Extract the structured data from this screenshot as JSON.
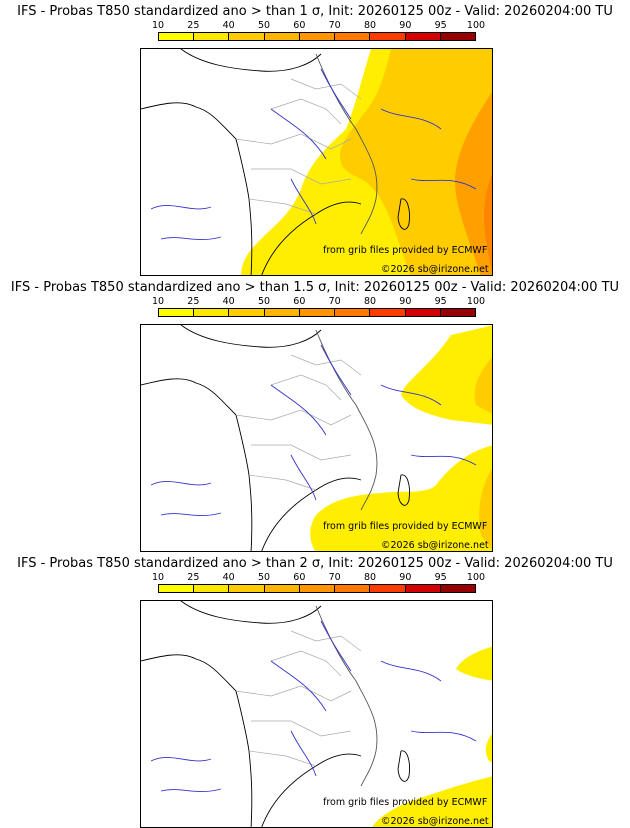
{
  "scale": {
    "labels": [
      "10",
      "25",
      "40",
      "50",
      "60",
      "70",
      "80",
      "90",
      "95",
      "100"
    ],
    "colors": [
      "#ffff00",
      "#ffe800",
      "#ffcc00",
      "#ffb400",
      "#ff9600",
      "#ff7800",
      "#ff3c00",
      "#d20000",
      "#960000"
    ]
  },
  "panels": [
    {
      "title": "IFS - Probas T850  standardized ano > than 1 σ, Init: 20260125 00z - Valid: 20260204:00 TU",
      "credit_source": "from grib files provided by ECMWF",
      "credit_copyright": "©2026 sb@irizone.net"
    },
    {
      "title": "IFS - Probas T850  standardized ano > than 1.5 σ, Init: 20260125 00z - Valid: 20260204:00 TU",
      "credit_source": "from grib files provided by ECMWF",
      "credit_copyright": "©2026 sb@irizone.net"
    },
    {
      "title": "IFS - Probas T850  standardized ano > than 2 σ, Init: 20260125 00z - Valid: 20260204:00 TU",
      "credit_source": "from grib files provided by ECMWF",
      "credit_copyright": "©2026 sb@irizone.net"
    }
  ],
  "colors": {
    "river": "#3333cc",
    "border": "#aaaaaa",
    "coast": "#000000"
  }
}
